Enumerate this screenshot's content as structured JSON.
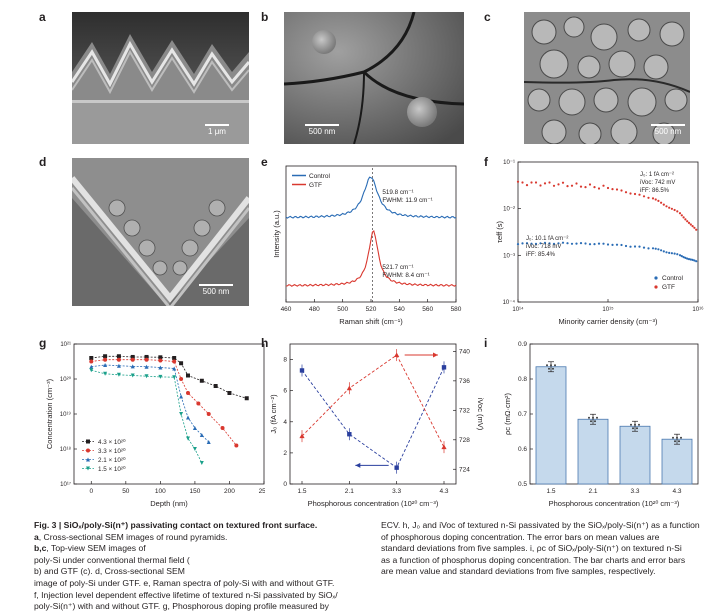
{
  "panel_letters": [
    "a",
    "b",
    "c",
    "d",
    "e",
    "f",
    "g",
    "h",
    "i"
  ],
  "sem_images": [
    {
      "id": "a",
      "scale_text": "1 μm"
    },
    {
      "id": "b",
      "scale_text": "500 nm"
    },
    {
      "id": "c",
      "scale_text": "500 nm"
    },
    {
      "id": "d",
      "scale_text": "500 nm"
    }
  ],
  "chart_data": [
    {
      "panel": "e",
      "type": "line",
      "xlabel": "Raman shift (cm⁻¹)",
      "ylabel": "Intensity (a.u.)",
      "xlim": [
        460,
        580
      ],
      "xticks": [
        "460",
        "480",
        "500",
        "520",
        "540",
        "560",
        "580"
      ],
      "legend": [
        "Control",
        "GTF"
      ],
      "series": [
        {
          "name": "Control",
          "color": "#2a6cb5",
          "peak": 519.8,
          "offset": 0.62,
          "annotation": [
            "519.8 cm⁻¹",
            "FWHM: 11.9 cm⁻¹"
          ]
        },
        {
          "name": "GTF",
          "color": "#d9382f",
          "peak": 521.7,
          "offset": 0.12,
          "annotation": [
            "521.7 cm⁻¹",
            "FWHM: 8.4 cm⁻¹"
          ]
        }
      ]
    },
    {
      "panel": "f",
      "type": "scatter",
      "log_x": true,
      "log_y": true,
      "xlabel": "Minority carrier density (cm⁻³)",
      "ylabel": "τeff (s)",
      "xticks": [
        "10¹⁴",
        "10¹⁵",
        "10¹⁶"
      ],
      "yticks": [
        "10⁻¹",
        "10⁻²",
        "10⁻³",
        "10⁻⁴"
      ],
      "legend": [
        "Control",
        "GTF"
      ],
      "annotations": {
        "GTF": [
          "J₀: 1 fA cm⁻²",
          "iVoc: 742 mV",
          "iFF: 86.5%"
        ],
        "Control": [
          "J₀: 10.1 fA cm⁻²",
          "iVoc: 718 mV",
          "iFF: 85.4%"
        ]
      },
      "series": [
        {
          "name": "Control",
          "color": "#2a6cb5",
          "x_exp": [
            14.0,
            14.5,
            15.0,
            15.5,
            15.8,
            16.0
          ],
          "y_exp": [
            -2.75,
            -2.74,
            -2.76,
            -2.85,
            -3.0,
            -3.15
          ]
        },
        {
          "name": "GTF",
          "color": "#d9382f",
          "x_exp": [
            14.0,
            14.5,
            15.0,
            15.5,
            15.8,
            16.0
          ],
          "y_exp": [
            -1.45,
            -1.48,
            -1.55,
            -1.78,
            -2.1,
            -2.5
          ]
        }
      ]
    },
    {
      "panel": "g",
      "type": "line",
      "log_y": true,
      "xlabel": "Depth (nm)",
      "ylabel": "Concentration (cm⁻³)",
      "xlim": [
        -25,
        250
      ],
      "xticks": [
        "0",
        "50",
        "100",
        "150",
        "200",
        "250"
      ],
      "yticks": [
        "10²¹",
        "10²⁰",
        "10¹⁹",
        "10¹⁸",
        "10¹⁷"
      ],
      "series": [
        {
          "name": "4.3 × 10²⁰",
          "color": "#231f20",
          "marker": "square",
          "depth": [
            0,
            20,
            40,
            60,
            80,
            100,
            120,
            130,
            140,
            160,
            180,
            200,
            225
          ],
          "log_conc": [
            20.6,
            20.65,
            20.65,
            20.63,
            20.63,
            20.62,
            20.6,
            20.45,
            20.1,
            19.95,
            19.8,
            19.6,
            19.45
          ]
        },
        {
          "name": "3.3 × 10²⁰",
          "color": "#d9382f",
          "marker": "circle",
          "depth": [
            0,
            20,
            40,
            60,
            80,
            100,
            120,
            130,
            140,
            155,
            170,
            190,
            210
          ],
          "log_conc": [
            20.5,
            20.55,
            20.55,
            20.55,
            20.55,
            20.53,
            20.5,
            20.0,
            19.6,
            19.3,
            19.0,
            18.6,
            18.1
          ]
        },
        {
          "name": "2.1 × 10²⁰",
          "color": "#2a6cb5",
          "marker": "triangle",
          "depth": [
            0,
            20,
            40,
            60,
            80,
            100,
            120,
            130,
            140,
            150,
            160,
            170
          ],
          "log_conc": [
            20.35,
            20.4,
            20.38,
            20.36,
            20.35,
            20.33,
            20.3,
            19.5,
            18.9,
            18.6,
            18.4,
            18.2
          ]
        },
        {
          "name": "1.5 × 10²⁰",
          "color": "#1aa08a",
          "marker": "triangle-down",
          "depth": [
            0,
            20,
            40,
            60,
            80,
            100,
            120,
            130,
            140,
            150,
            160
          ],
          "log_conc": [
            20.25,
            20.15,
            20.12,
            20.1,
            20.08,
            20.06,
            20.05,
            19.0,
            18.3,
            18.0,
            17.6
          ]
        }
      ]
    },
    {
      "panel": "h",
      "type": "line",
      "xlabel": "Phosphorous concentration (10²⁰ cm⁻³)",
      "ylabel_left": "J₀ (fA cm⁻²)",
      "ylabel_right": "iVoc (mV)",
      "categories": [
        "1.5",
        "2.1",
        "3.3",
        "4.3"
      ],
      "yticks_left": [
        "0",
        "2",
        "4",
        "6",
        "8"
      ],
      "ylim_left": [
        0,
        9
      ],
      "yticks_right": [
        "724",
        "728",
        "732",
        "736",
        "740"
      ],
      "ylim_right": [
        722,
        741
      ],
      "series": [
        {
          "name": "J₀",
          "axis": "left",
          "color": "#2a3f9e",
          "values": [
            7.3,
            3.2,
            1.05,
            7.5
          ]
        },
        {
          "name": "iVoc",
          "axis": "right",
          "color": "#d9382f",
          "values": [
            728.5,
            735,
            739.5,
            727
          ]
        }
      ]
    },
    {
      "panel": "i",
      "type": "bar",
      "xlabel": "Phosphorous concentration (10²⁰ cm⁻³)",
      "ylabel": "ρc (mΩ·cm²)",
      "categories": [
        "1.5",
        "2.1",
        "3.3",
        "4.3"
      ],
      "values": [
        0.835,
        0.685,
        0.665,
        0.628
      ],
      "ylim": [
        0.5,
        0.9
      ],
      "yticks": [
        "0.5",
        "0.6",
        "0.7",
        "0.8",
        "0.9"
      ],
      "bar_color": "#c5d9ec",
      "edge_color": "#4a79b0"
    }
  ],
  "caption": {
    "left_lines": [
      {
        "bold": "Fig. 3 | SiOₓ/poly-Si(n⁺) passivating contact on textured front surface.",
        "text": ""
      },
      {
        "bold": "a",
        "text": ", Cross-sectional SEM images of round pyramids. "
      },
      {
        "bold": "b,c",
        "text": ", Top-view SEM images of"
      },
      {
        "bold": "",
        "text": "poly-Si under conventional thermal field ("
      },
      {
        "bold": "",
        "text": "b) and GTF (c). d, Cross-sectional SEM"
      },
      {
        "bold": "",
        "text": "image of poly-Si under GTF. e, Raman spectra of poly-Si with and without GTF."
      },
      {
        "bold": "",
        "text": "f, Injection level dependent effective lifetime of textured n-Si passivated by SiOₓ/"
      },
      {
        "bold": "",
        "text": "poly-Si(n⁺) with and without GTF. g, Phosphorous doping profile measured by"
      }
    ],
    "right_lines": [
      "ECV. h, J₀ and iVoc of textured n-Si passivated by the SiOₓ/poly-Si(n⁺) as a function",
      "of phosphorous doping concentration. The error bars on mean values are",
      "standard deviations from five samples. i, ρc of SiOₓ/poly-Si(n⁺) on textured n-Si",
      "as a function of phosphorus doping concentration. The bar charts and error bars",
      "are mean value and standard deviations from five samples, respectively."
    ]
  }
}
